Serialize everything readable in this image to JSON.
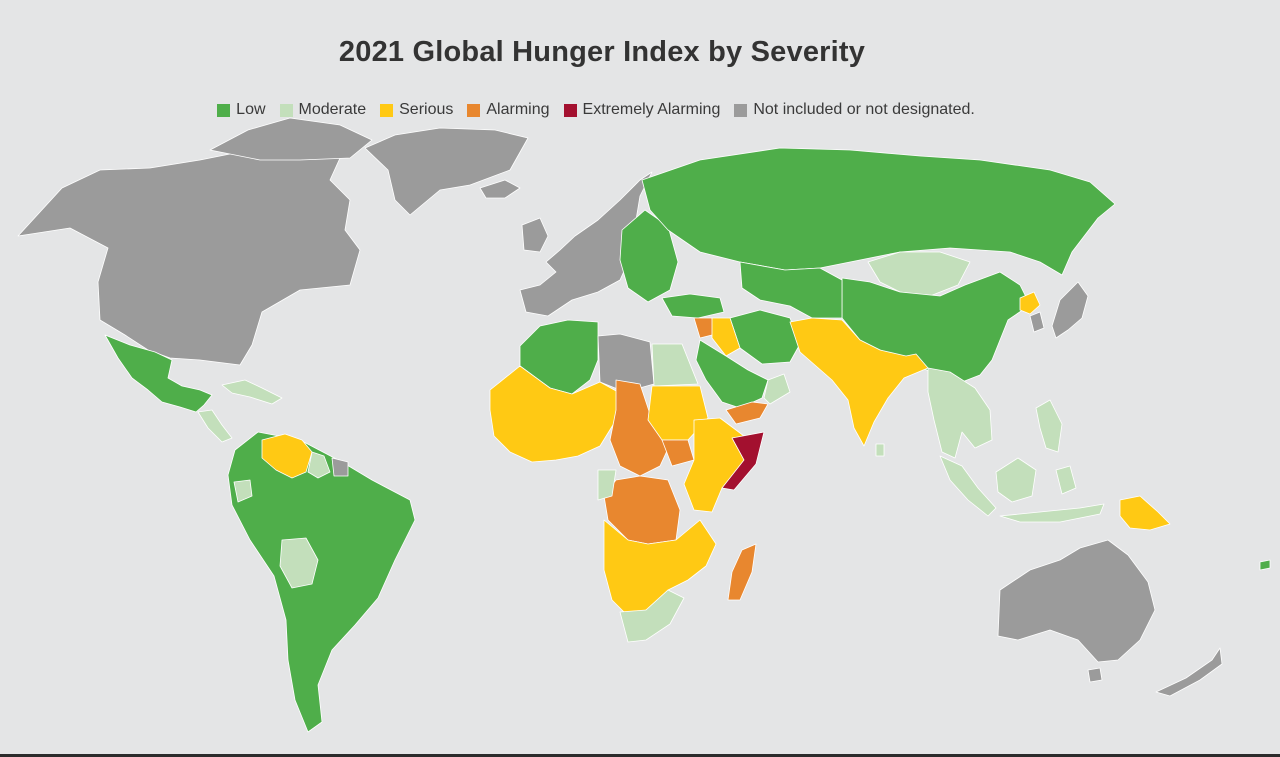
{
  "title": "2021 Global Hunger Index by Severity",
  "legend": [
    {
      "key": "low",
      "label": "Low",
      "color": "#4fae4a"
    },
    {
      "key": "moderate",
      "label": "Moderate",
      "color": "#c3dfbb"
    },
    {
      "key": "serious",
      "label": "Serious",
      "color": "#ffc914"
    },
    {
      "key": "alarming",
      "label": "Alarming",
      "color": "#e8872f"
    },
    {
      "key": "extremely_alarming",
      "label": "Extremely Alarming",
      "color": "#a3102f"
    },
    {
      "key": "not_included",
      "label": "Not included or not designated.",
      "color": "#9b9b9b"
    }
  ],
  "colors": {
    "background": "#e4e5e6",
    "ocean": "#e4e5e6",
    "border": "#ffffff"
  },
  "map_regions": [
    {
      "name": "North America",
      "category": "not_included"
    },
    {
      "name": "Greenland",
      "category": "not_included"
    },
    {
      "name": "Mexico and Central America",
      "category": "low"
    },
    {
      "name": "Caribbean",
      "category": "moderate"
    },
    {
      "name": "Venezuela",
      "category": "serious"
    },
    {
      "name": "Guyana",
      "category": "moderate"
    },
    {
      "name": "Suriname and French Guiana",
      "category": "not_included"
    },
    {
      "name": "South America",
      "category": "low"
    },
    {
      "name": "Ecuador",
      "category": "moderate"
    },
    {
      "name": "Bolivia",
      "category": "moderate"
    },
    {
      "name": "Western Europe",
      "category": "not_included"
    },
    {
      "name": "Eastern Europe",
      "category": "low"
    },
    {
      "name": "Russia",
      "category": "low"
    },
    {
      "name": "Mongolia",
      "category": "moderate"
    },
    {
      "name": "China",
      "category": "low"
    },
    {
      "name": "North Korea",
      "category": "serious"
    },
    {
      "name": "Japan and South Korea",
      "category": "not_included"
    },
    {
      "name": "Central Asia",
      "category": "low"
    },
    {
      "name": "Turkey",
      "category": "low"
    },
    {
      "name": "Iran",
      "category": "low"
    },
    {
      "name": "Syria",
      "category": "alarming"
    },
    {
      "name": "Iraq",
      "category": "serious"
    },
    {
      "name": "Saudi Arabia",
      "category": "low"
    },
    {
      "name": "Yemen",
      "category": "alarming"
    },
    {
      "name": "Oman",
      "category": "moderate"
    },
    {
      "name": "South Asia",
      "category": "serious"
    },
    {
      "name": "Southeast Asia",
      "category": "moderate"
    },
    {
      "name": "Papua New Guinea",
      "category": "serious"
    },
    {
      "name": "Australia",
      "category": "not_included"
    },
    {
      "name": "New Zealand",
      "category": "not_included"
    },
    {
      "name": "Morocco and Algeria",
      "category": "low"
    },
    {
      "name": "Libya",
      "category": "not_included"
    },
    {
      "name": "Egypt",
      "category": "moderate"
    },
    {
      "name": "West Africa",
      "category": "serious"
    },
    {
      "name": "Central African Republic and Chad",
      "category": "alarming"
    },
    {
      "name": "Sudan",
      "category": "serious"
    },
    {
      "name": "Congo DR",
      "category": "alarming"
    },
    {
      "name": "Ethiopia and Kenya",
      "category": "serious"
    },
    {
      "name": "Somalia",
      "category": "extremely_alarming"
    },
    {
      "name": "Southern Africa",
      "category": "serious"
    },
    {
      "name": "South Africa",
      "category": "moderate"
    },
    {
      "name": "Madagascar",
      "category": "alarming"
    }
  ]
}
